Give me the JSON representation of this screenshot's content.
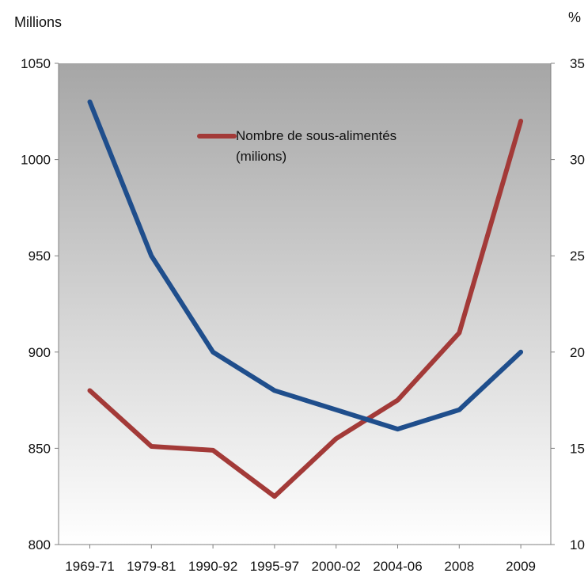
{
  "chart_data": {
    "type": "line",
    "categories": [
      "1969-71",
      "1979-81",
      "1990-92",
      "1995-97",
      "2000-02",
      "2004-06",
      "2008",
      "2009"
    ],
    "left_axis": {
      "unit_label": "Millions",
      "ylim": [
        800,
        1050
      ],
      "ticks": [
        800,
        850,
        900,
        950,
        1000,
        1050
      ]
    },
    "right_axis": {
      "unit_label": "%",
      "ylim": [
        10,
        35
      ],
      "ticks": [
        10,
        15,
        20,
        25,
        30,
        35
      ]
    },
    "series": [
      {
        "name": "Nombre de sous-alimentés (milions)",
        "axis": "left",
        "color": "#a33a38",
        "values": [
          880,
          851,
          849,
          825,
          855,
          875,
          910,
          1020
        ]
      },
      {
        "axis": "right",
        "color": "#1f4e8c",
        "values": [
          33,
          25,
          20,
          18,
          17,
          16,
          17,
          20
        ]
      }
    ],
    "legend": {
      "position": "top-center",
      "line1": "Nombre de sous-alimentés",
      "line2": "(milions)"
    },
    "grid": false,
    "background": {
      "gradient_top": "#a6a6a6",
      "gradient_bottom": "#ffffff"
    }
  }
}
